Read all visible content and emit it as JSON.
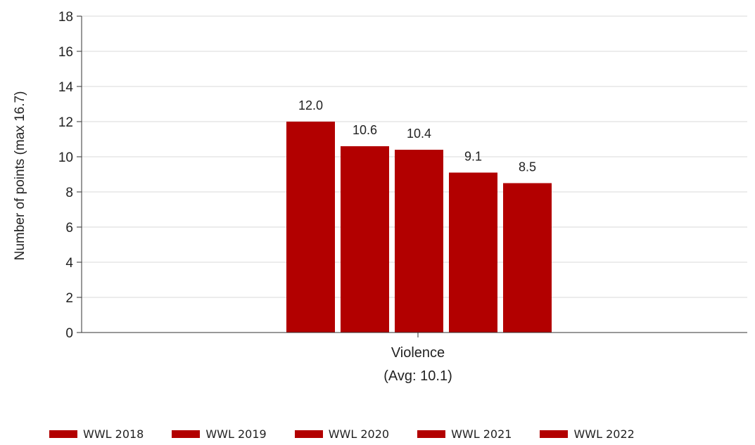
{
  "chart_data": {
    "type": "bar",
    "categories": [
      "Violence"
    ],
    "category_sublabel": "(Avg: 10.1)",
    "series": [
      {
        "name": "WWL 2018",
        "values": [
          12.0
        ]
      },
      {
        "name": "WWL 2019",
        "values": [
          10.6
        ]
      },
      {
        "name": "WWL 2020",
        "values": [
          10.4
        ]
      },
      {
        "name": "WWL 2021",
        "values": [
          9.1
        ]
      },
      {
        "name": "WWL 2022",
        "values": [
          8.5
        ]
      }
    ],
    "data_labels": [
      "12.0",
      "10.6",
      "10.4",
      "9.1",
      "8.5"
    ],
    "ylabel": "Number of points (max 16.7)",
    "xlabel": "",
    "ylim": [
      0,
      18
    ],
    "yticks": [
      0,
      2,
      4,
      6,
      8,
      10,
      12,
      14,
      16,
      18
    ],
    "grid": true,
    "legend_position": "bottom",
    "bar_color": "#b20000",
    "grid_color": "#d9d9d9",
    "axis_color": "#333333"
  }
}
